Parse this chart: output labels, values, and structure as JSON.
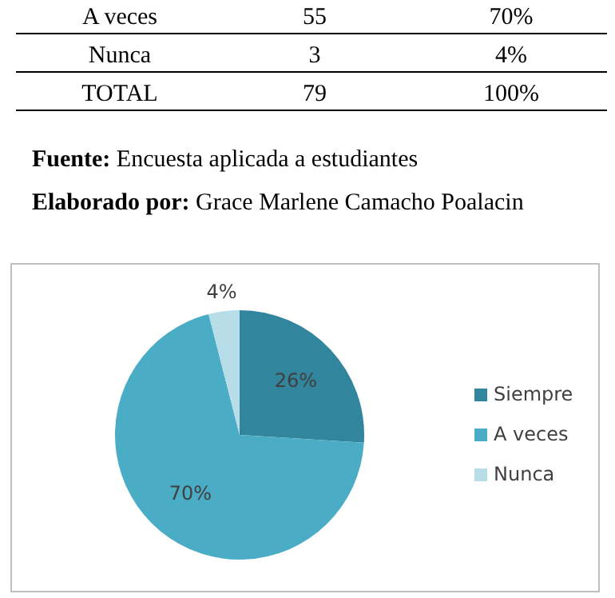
{
  "chart_data": {
    "type": "pie",
    "categories": [
      "Siempre",
      "A veces",
      "Nunca"
    ],
    "values": [
      26,
      70,
      4
    ],
    "colors": [
      "#31859c",
      "#4bacc6",
      "#b7dee8"
    ],
    "value_labels": [
      "26%",
      "70%",
      "4%"
    ],
    "legend": "right",
    "annotations": [
      "A veces",
      "55",
      "70%",
      "Nunca",
      "3",
      "4%",
      "TOTAL",
      "79",
      "100%",
      "Fuente: Encuesta aplicada a estudiantes",
      "Elaborado por: Grace Marlene Camacho Poalacin"
    ]
  }
}
